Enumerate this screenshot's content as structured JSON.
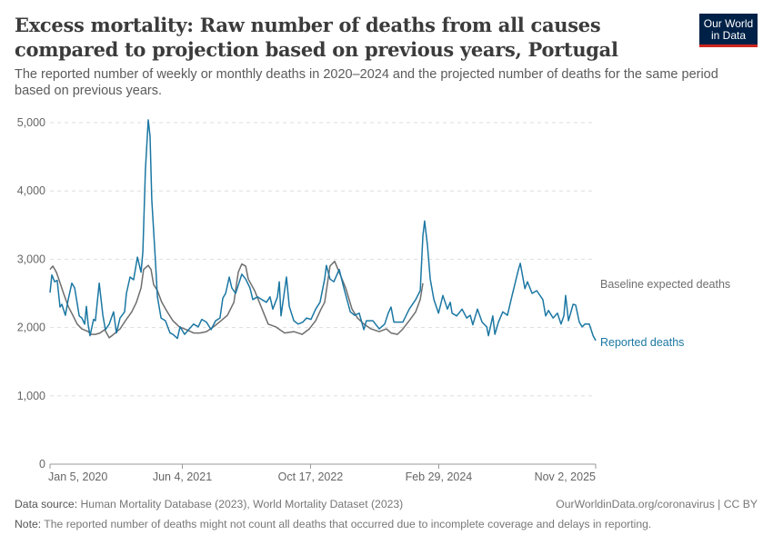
{
  "header": {
    "title": "Excess mortality: Raw number of deaths from all causes compared to projection based on previous years, Portugal",
    "subtitle": "The reported number of weekly or monthly deaths in 2020–2024 and the projected number of deaths for the same period based on previous years.",
    "logo_text": "Our World in Data"
  },
  "footer": {
    "source_label": "Data source:",
    "source_text": " Human Mortality Database (2023), World Mortality Dataset (2023)",
    "credit": "OurWorldinData.org/coronavirus | CC BY",
    "note_label": "Note:",
    "note_text": " The reported number of deaths might not count all deaths that occurred due to incomplete coverage and delays in reporting."
  },
  "chart_data": {
    "type": "line",
    "title": "",
    "xlabel": "",
    "ylabel": "",
    "xlim": [
      "2020-01-05",
      "2025-11-02"
    ],
    "ylim": [
      0,
      5000
    ],
    "yticks": [
      0,
      1000,
      2000,
      3000,
      4000,
      5000
    ],
    "ytick_labels": [
      "0",
      "1,000",
      "2,000",
      "3,000",
      "4,000",
      "5,000"
    ],
    "xticks": [
      "2020-01-05",
      "2021-06-04",
      "2022-10-17",
      "2024-02-29",
      "2025-11-02"
    ],
    "xtick_labels": [
      "Jan 5, 2020",
      "Jun 4, 2021",
      "Oct 17, 2022",
      "Feb 29, 2024",
      "Nov 2, 2025"
    ],
    "grid": "horizontal-dashed",
    "legend": "inline-right",
    "series": [
      {
        "name": "Baseline expected deaths",
        "color": "#6e6e6e",
        "points": [
          [
            "2020-01-05",
            2850
          ],
          [
            "2020-01-16",
            2900
          ],
          [
            "2020-01-30",
            2810
          ],
          [
            "2020-02-09",
            2700
          ],
          [
            "2020-02-27",
            2500
          ],
          [
            "2020-03-16",
            2310
          ],
          [
            "2020-04-03",
            2180
          ],
          [
            "2020-04-20",
            2050
          ],
          [
            "2020-05-08",
            1980
          ],
          [
            "2020-06-02",
            1940
          ],
          [
            "2020-06-13",
            1900
          ],
          [
            "2020-06-30",
            1900
          ],
          [
            "2020-07-18",
            1920
          ],
          [
            "2020-08-05",
            1970
          ],
          [
            "2020-08-23",
            1850
          ],
          [
            "2020-09-09",
            1900
          ],
          [
            "2020-10-04",
            1980
          ],
          [
            "2020-10-25",
            2100
          ],
          [
            "2020-11-19",
            2230
          ],
          [
            "2020-12-07",
            2370
          ],
          [
            "2020-12-25",
            2580
          ],
          [
            "2021-01-04",
            2850
          ],
          [
            "2021-01-22",
            2910
          ],
          [
            "2021-02-02",
            2850
          ],
          [
            "2021-02-12",
            2630
          ],
          [
            "2021-02-27",
            2540
          ],
          [
            "2021-03-16",
            2370
          ],
          [
            "2021-04-03",
            2250
          ],
          [
            "2021-04-28",
            2100
          ],
          [
            "2021-05-23",
            2010
          ],
          [
            "2021-06-20",
            1970
          ],
          [
            "2021-07-18",
            1920
          ],
          [
            "2021-08-12",
            1920
          ],
          [
            "2021-09-06",
            1940
          ],
          [
            "2021-10-04",
            2010
          ],
          [
            "2021-11-02",
            2100
          ],
          [
            "2021-11-27",
            2180
          ],
          [
            "2021-12-22",
            2370
          ],
          [
            "2022-01-08",
            2810
          ],
          [
            "2022-01-22",
            2930
          ],
          [
            "2022-02-06",
            2900
          ],
          [
            "2022-02-16",
            2710
          ],
          [
            "2022-03-13",
            2540
          ],
          [
            "2022-04-07",
            2310
          ],
          [
            "2022-05-05",
            2050
          ],
          [
            "2022-06-03",
            2010
          ],
          [
            "2022-07-08",
            1920
          ],
          [
            "2022-08-13",
            1940
          ],
          [
            "2022-09-14",
            1900
          ],
          [
            "2022-10-12",
            1980
          ],
          [
            "2022-11-06",
            2100
          ],
          [
            "2022-11-27",
            2270
          ],
          [
            "2022-12-11",
            2370
          ],
          [
            "2023-01-01",
            2900
          ],
          [
            "2023-01-19",
            2970
          ],
          [
            "2023-02-06",
            2810
          ],
          [
            "2023-03-03",
            2580
          ],
          [
            "2023-03-28",
            2270
          ],
          [
            "2023-04-18",
            2140
          ],
          [
            "2023-05-13",
            2050
          ],
          [
            "2023-06-10",
            1980
          ],
          [
            "2023-07-12",
            1940
          ],
          [
            "2023-08-09",
            1980
          ],
          [
            "2023-08-27",
            1920
          ],
          [
            "2023-09-21",
            1900
          ],
          [
            "2023-10-12",
            1980
          ],
          [
            "2023-11-06",
            2100
          ],
          [
            "2023-12-01",
            2230
          ],
          [
            "2023-12-19",
            2410
          ],
          [
            "2023-12-29",
            2650
          ]
        ]
      },
      {
        "name": "Reported deaths",
        "color": "#1b77a3",
        "points": [
          [
            "2020-01-05",
            2510
          ],
          [
            "2020-01-12",
            2770
          ],
          [
            "2020-01-23",
            2670
          ],
          [
            "2020-02-02",
            2690
          ],
          [
            "2020-02-13",
            2300
          ],
          [
            "2020-02-20",
            2340
          ],
          [
            "2020-03-05",
            2180
          ],
          [
            "2020-03-16",
            2410
          ],
          [
            "2020-03-30",
            2650
          ],
          [
            "2020-04-10",
            2580
          ],
          [
            "2020-04-28",
            2170
          ],
          [
            "2020-05-08",
            2140
          ],
          [
            "2020-05-19",
            2050
          ],
          [
            "2020-05-26",
            2310
          ],
          [
            "2020-06-02",
            2040
          ],
          [
            "2020-06-09",
            1880
          ],
          [
            "2020-06-23",
            2120
          ],
          [
            "2020-06-30",
            2100
          ],
          [
            "2020-07-15",
            2650
          ],
          [
            "2020-07-29",
            2180
          ],
          [
            "2020-08-08",
            1970
          ],
          [
            "2020-08-23",
            2050
          ],
          [
            "2020-09-09",
            2230
          ],
          [
            "2020-09-20",
            1920
          ],
          [
            "2020-10-04",
            2140
          ],
          [
            "2020-10-22",
            2230
          ],
          [
            "2020-10-29",
            2500
          ],
          [
            "2020-11-12",
            2740
          ],
          [
            "2020-11-26",
            2700
          ],
          [
            "2020-12-11",
            3030
          ],
          [
            "2020-12-25",
            2810
          ],
          [
            "2021-01-01",
            3110
          ],
          [
            "2021-01-11",
            4310
          ],
          [
            "2021-01-22",
            5040
          ],
          [
            "2021-01-29",
            4800
          ],
          [
            "2021-02-05",
            3870
          ],
          [
            "2021-02-19",
            2980
          ],
          [
            "2021-02-27",
            2450
          ],
          [
            "2021-03-13",
            2140
          ],
          [
            "2021-03-30",
            2100
          ],
          [
            "2021-04-17",
            1920
          ],
          [
            "2021-04-28",
            1900
          ],
          [
            "2021-05-16",
            1840
          ],
          [
            "2021-05-26",
            2010
          ],
          [
            "2021-06-13",
            1900
          ],
          [
            "2021-07-01",
            1980
          ],
          [
            "2021-07-18",
            2050
          ],
          [
            "2021-08-05",
            2010
          ],
          [
            "2021-08-19",
            2120
          ],
          [
            "2021-09-06",
            2080
          ],
          [
            "2021-09-24",
            1970
          ],
          [
            "2021-10-12",
            2100
          ],
          [
            "2021-10-29",
            2140
          ],
          [
            "2021-11-09",
            2430
          ],
          [
            "2021-11-20",
            2500
          ],
          [
            "2021-12-04",
            2740
          ],
          [
            "2021-12-14",
            2580
          ],
          [
            "2021-12-29",
            2500
          ],
          [
            "2022-01-22",
            2780
          ],
          [
            "2022-02-06",
            2710
          ],
          [
            "2022-02-23",
            2580
          ],
          [
            "2022-03-06",
            2410
          ],
          [
            "2022-03-24",
            2450
          ],
          [
            "2022-04-10",
            2410
          ],
          [
            "2022-04-28",
            2370
          ],
          [
            "2022-05-12",
            2450
          ],
          [
            "2022-05-23",
            2270
          ],
          [
            "2022-06-10",
            2450
          ],
          [
            "2022-06-17",
            2670
          ],
          [
            "2022-06-24",
            2170
          ],
          [
            "2022-07-15",
            2740
          ],
          [
            "2022-07-26",
            2310
          ],
          [
            "2022-08-13",
            2100
          ],
          [
            "2022-08-30",
            2050
          ],
          [
            "2022-09-17",
            2080
          ],
          [
            "2022-10-01",
            2140
          ],
          [
            "2022-10-19",
            2120
          ],
          [
            "2022-11-06",
            2270
          ],
          [
            "2022-11-23",
            2370
          ],
          [
            "2022-12-11",
            2710
          ],
          [
            "2022-12-18",
            2910
          ],
          [
            "2023-01-01",
            2710
          ],
          [
            "2023-01-16",
            2670
          ],
          [
            "2023-02-06",
            2850
          ],
          [
            "2023-02-24",
            2580
          ],
          [
            "2023-03-21",
            2230
          ],
          [
            "2023-04-07",
            2180
          ],
          [
            "2023-04-25",
            2210
          ],
          [
            "2023-05-13",
            1970
          ],
          [
            "2023-05-23",
            2100
          ],
          [
            "2023-06-17",
            2100
          ],
          [
            "2023-07-12",
            1980
          ],
          [
            "2023-08-02",
            2050
          ],
          [
            "2023-08-16",
            2210
          ],
          [
            "2023-08-27",
            2300
          ],
          [
            "2023-09-07",
            2080
          ],
          [
            "2023-10-12",
            2080
          ],
          [
            "2023-11-06",
            2270
          ],
          [
            "2023-12-01",
            2410
          ],
          [
            "2023-12-19",
            2540
          ],
          [
            "2023-12-29",
            3340
          ],
          [
            "2024-01-05",
            3560
          ],
          [
            "2024-01-16",
            3210
          ],
          [
            "2024-01-27",
            2710
          ],
          [
            "2024-02-10",
            2410
          ],
          [
            "2024-02-28",
            2210
          ],
          [
            "2024-03-16",
            2470
          ],
          [
            "2024-04-03",
            2270
          ],
          [
            "2024-04-14",
            2370
          ],
          [
            "2024-04-21",
            2210
          ],
          [
            "2024-05-09",
            2170
          ],
          [
            "2024-05-30",
            2270
          ],
          [
            "2024-06-17",
            2140
          ],
          [
            "2024-07-01",
            2180
          ],
          [
            "2024-07-11",
            2040
          ],
          [
            "2024-07-29",
            2270
          ],
          [
            "2024-08-16",
            2080
          ],
          [
            "2024-09-03",
            2010
          ],
          [
            "2024-09-10",
            1880
          ],
          [
            "2024-09-27",
            2170
          ],
          [
            "2024-10-05",
            1900
          ],
          [
            "2024-10-19",
            2080
          ],
          [
            "2024-11-05",
            2230
          ],
          [
            "2024-11-23",
            2180
          ],
          [
            "2024-12-11",
            2470
          ],
          [
            "2025-01-05",
            2850
          ],
          [
            "2025-01-12",
            2940
          ],
          [
            "2025-01-30",
            2570
          ],
          [
            "2025-02-09",
            2670
          ],
          [
            "2025-02-27",
            2500
          ],
          [
            "2025-03-17",
            2540
          ],
          [
            "2025-04-10",
            2410
          ],
          [
            "2025-04-21",
            2170
          ],
          [
            "2025-05-02",
            2250
          ],
          [
            "2025-05-20",
            2140
          ],
          [
            "2025-06-06",
            2210
          ],
          [
            "2025-06-20",
            2050
          ],
          [
            "2025-07-01",
            2170
          ],
          [
            "2025-07-08",
            2470
          ],
          [
            "2025-07-19",
            2100
          ],
          [
            "2025-08-06",
            2340
          ],
          [
            "2025-08-16",
            2330
          ],
          [
            "2025-08-30",
            2080
          ],
          [
            "2025-09-10",
            2010
          ],
          [
            "2025-09-21",
            2050
          ],
          [
            "2025-10-08",
            2050
          ],
          [
            "2025-10-23",
            1880
          ],
          [
            "2025-11-02",
            1810
          ]
        ]
      }
    ]
  }
}
